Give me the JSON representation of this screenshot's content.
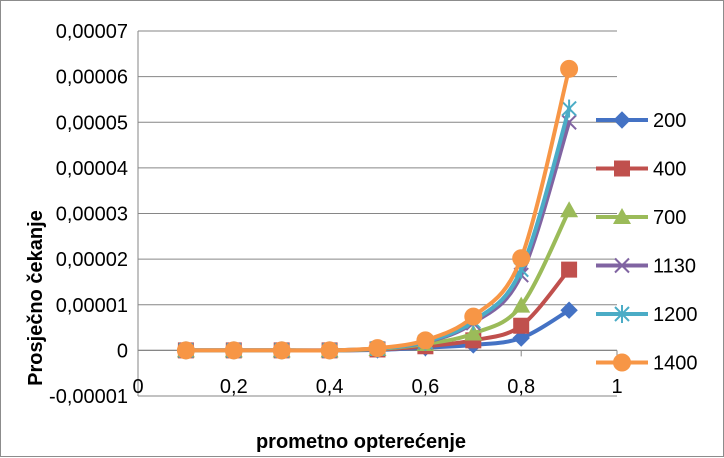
{
  "chart_data": {
    "type": "line",
    "title": "",
    "xlabel": "prometno opterećenje",
    "ylabel": "Prosječno čekanje",
    "xlim": [
      0,
      1
    ],
    "ylim": [
      -1e-05,
      7e-05
    ],
    "xticks": [
      0,
      0.2,
      0.4,
      0.6,
      0.8,
      1
    ],
    "yticks": [
      -1e-05,
      0,
      1e-05,
      2e-05,
      3e-05,
      4e-05,
      5e-05,
      6e-05,
      7e-05
    ],
    "xtick_labels": [
      "0",
      "0,2",
      "0,4",
      "0,6",
      "0,8",
      "1"
    ],
    "ytick_labels": [
      "-0,00001",
      "0",
      "0,00001",
      "0,00002",
      "0,00003",
      "0,00004",
      "0,00005",
      "0,00006",
      "0,00007"
    ],
    "grid": "horizontal",
    "legend_position": "right",
    "x": [
      0.1,
      0.2,
      0.3,
      0.4,
      0.5,
      0.6,
      0.7,
      0.8,
      0.9
    ],
    "series": [
      {
        "name": "200",
        "color": "#4472C4",
        "marker": "diamond",
        "values": [
          0,
          0,
          0,
          0,
          1e-07,
          6e-07,
          1.2e-06,
          2.7e-06,
          8.8e-06
        ]
      },
      {
        "name": "400",
        "color": "#C0504D",
        "marker": "square",
        "values": [
          0,
          0,
          0,
          0,
          2e-07,
          9e-07,
          2.2e-06,
          5.4e-06,
          1.77e-05
        ]
      },
      {
        "name": "700",
        "color": "#9BBB59",
        "marker": "triangle",
        "values": [
          0,
          0,
          0,
          0,
          3e-07,
          1.4e-06,
          3.7e-06,
          9.8e-06,
          3.07e-05
        ]
      },
      {
        "name": "1130",
        "color": "#8064A2",
        "marker": "x",
        "values": [
          0,
          0,
          0,
          0,
          4e-07,
          1.8e-06,
          6e-06,
          1.65e-05,
          5e-05
        ]
      },
      {
        "name": "1200",
        "color": "#4BACC6",
        "marker": "star",
        "values": [
          0,
          0,
          0,
          0,
          4e-07,
          1.9e-06,
          6.4e-06,
          1.77e-05,
          5.3e-05
        ]
      },
      {
        "name": "1400",
        "color": "#F79646",
        "marker": "circle",
        "values": [
          0,
          0,
          0,
          0,
          5e-07,
          2.2e-06,
          7.4e-06,
          2.02e-05,
          6.17e-05
        ]
      }
    ]
  }
}
